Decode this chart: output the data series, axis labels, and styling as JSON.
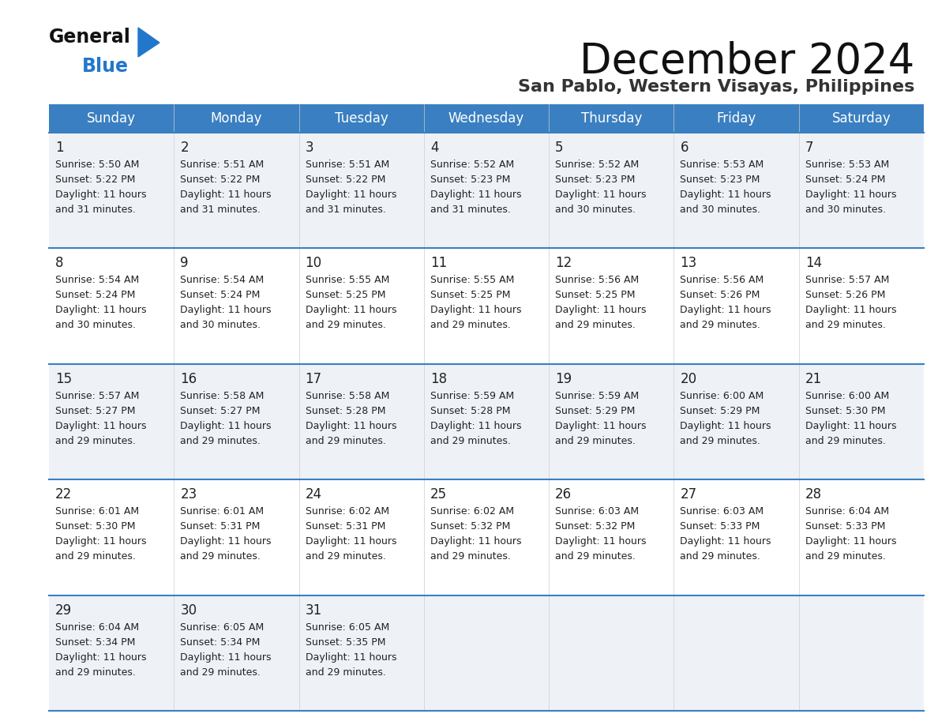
{
  "title": "December 2024",
  "subtitle": "San Pablo, Western Visayas, Philippines",
  "days_of_week": [
    "Sunday",
    "Monday",
    "Tuesday",
    "Wednesday",
    "Thursday",
    "Friday",
    "Saturday"
  ],
  "header_bg_color": "#3a7fc1",
  "header_text_color": "#ffffff",
  "cell_bg_even": "#eef2f7",
  "cell_bg_odd": "#ffffff",
  "row_divider_color": "#3a7fc1",
  "text_color": "#222222",
  "title_color": "#111111",
  "subtitle_color": "#333333",
  "logo_general_color": "#111111",
  "logo_blue_color": "#2277cc",
  "weeks": [
    [
      {
        "day": 1,
        "sunrise": "5:50 AM",
        "sunset": "5:22 PM",
        "daylight_h": "Daylight: 11 hours",
        "daylight_m": "and 31 minutes."
      },
      {
        "day": 2,
        "sunrise": "5:51 AM",
        "sunset": "5:22 PM",
        "daylight_h": "Daylight: 11 hours",
        "daylight_m": "and 31 minutes."
      },
      {
        "day": 3,
        "sunrise": "5:51 AM",
        "sunset": "5:22 PM",
        "daylight_h": "Daylight: 11 hours",
        "daylight_m": "and 31 minutes."
      },
      {
        "day": 4,
        "sunrise": "5:52 AM",
        "sunset": "5:23 PM",
        "daylight_h": "Daylight: 11 hours",
        "daylight_m": "and 31 minutes."
      },
      {
        "day": 5,
        "sunrise": "5:52 AM",
        "sunset": "5:23 PM",
        "daylight_h": "Daylight: 11 hours",
        "daylight_m": "and 30 minutes."
      },
      {
        "day": 6,
        "sunrise": "5:53 AM",
        "sunset": "5:23 PM",
        "daylight_h": "Daylight: 11 hours",
        "daylight_m": "and 30 minutes."
      },
      {
        "day": 7,
        "sunrise": "5:53 AM",
        "sunset": "5:24 PM",
        "daylight_h": "Daylight: 11 hours",
        "daylight_m": "and 30 minutes."
      }
    ],
    [
      {
        "day": 8,
        "sunrise": "5:54 AM",
        "sunset": "5:24 PM",
        "daylight_h": "Daylight: 11 hours",
        "daylight_m": "and 30 minutes."
      },
      {
        "day": 9,
        "sunrise": "5:54 AM",
        "sunset": "5:24 PM",
        "daylight_h": "Daylight: 11 hours",
        "daylight_m": "and 30 minutes."
      },
      {
        "day": 10,
        "sunrise": "5:55 AM",
        "sunset": "5:25 PM",
        "daylight_h": "Daylight: 11 hours",
        "daylight_m": "and 29 minutes."
      },
      {
        "day": 11,
        "sunrise": "5:55 AM",
        "sunset": "5:25 PM",
        "daylight_h": "Daylight: 11 hours",
        "daylight_m": "and 29 minutes."
      },
      {
        "day": 12,
        "sunrise": "5:56 AM",
        "sunset": "5:25 PM",
        "daylight_h": "Daylight: 11 hours",
        "daylight_m": "and 29 minutes."
      },
      {
        "day": 13,
        "sunrise": "5:56 AM",
        "sunset": "5:26 PM",
        "daylight_h": "Daylight: 11 hours",
        "daylight_m": "and 29 minutes."
      },
      {
        "day": 14,
        "sunrise": "5:57 AM",
        "sunset": "5:26 PM",
        "daylight_h": "Daylight: 11 hours",
        "daylight_m": "and 29 minutes."
      }
    ],
    [
      {
        "day": 15,
        "sunrise": "5:57 AM",
        "sunset": "5:27 PM",
        "daylight_h": "Daylight: 11 hours",
        "daylight_m": "and 29 minutes."
      },
      {
        "day": 16,
        "sunrise": "5:58 AM",
        "sunset": "5:27 PM",
        "daylight_h": "Daylight: 11 hours",
        "daylight_m": "and 29 minutes."
      },
      {
        "day": 17,
        "sunrise": "5:58 AM",
        "sunset": "5:28 PM",
        "daylight_h": "Daylight: 11 hours",
        "daylight_m": "and 29 minutes."
      },
      {
        "day": 18,
        "sunrise": "5:59 AM",
        "sunset": "5:28 PM",
        "daylight_h": "Daylight: 11 hours",
        "daylight_m": "and 29 minutes."
      },
      {
        "day": 19,
        "sunrise": "5:59 AM",
        "sunset": "5:29 PM",
        "daylight_h": "Daylight: 11 hours",
        "daylight_m": "and 29 minutes."
      },
      {
        "day": 20,
        "sunrise": "6:00 AM",
        "sunset": "5:29 PM",
        "daylight_h": "Daylight: 11 hours",
        "daylight_m": "and 29 minutes."
      },
      {
        "day": 21,
        "sunrise": "6:00 AM",
        "sunset": "5:30 PM",
        "daylight_h": "Daylight: 11 hours",
        "daylight_m": "and 29 minutes."
      }
    ],
    [
      {
        "day": 22,
        "sunrise": "6:01 AM",
        "sunset": "5:30 PM",
        "daylight_h": "Daylight: 11 hours",
        "daylight_m": "and 29 minutes."
      },
      {
        "day": 23,
        "sunrise": "6:01 AM",
        "sunset": "5:31 PM",
        "daylight_h": "Daylight: 11 hours",
        "daylight_m": "and 29 minutes."
      },
      {
        "day": 24,
        "sunrise": "6:02 AM",
        "sunset": "5:31 PM",
        "daylight_h": "Daylight: 11 hours",
        "daylight_m": "and 29 minutes."
      },
      {
        "day": 25,
        "sunrise": "6:02 AM",
        "sunset": "5:32 PM",
        "daylight_h": "Daylight: 11 hours",
        "daylight_m": "and 29 minutes."
      },
      {
        "day": 26,
        "sunrise": "6:03 AM",
        "sunset": "5:32 PM",
        "daylight_h": "Daylight: 11 hours",
        "daylight_m": "and 29 minutes."
      },
      {
        "day": 27,
        "sunrise": "6:03 AM",
        "sunset": "5:33 PM",
        "daylight_h": "Daylight: 11 hours",
        "daylight_m": "and 29 minutes."
      },
      {
        "day": 28,
        "sunrise": "6:04 AM",
        "sunset": "5:33 PM",
        "daylight_h": "Daylight: 11 hours",
        "daylight_m": "and 29 minutes."
      }
    ],
    [
      {
        "day": 29,
        "sunrise": "6:04 AM",
        "sunset": "5:34 PM",
        "daylight_h": "Daylight: 11 hours",
        "daylight_m": "and 29 minutes."
      },
      {
        "day": 30,
        "sunrise": "6:05 AM",
        "sunset": "5:34 PM",
        "daylight_h": "Daylight: 11 hours",
        "daylight_m": "and 29 minutes."
      },
      {
        "day": 31,
        "sunrise": "6:05 AM",
        "sunset": "5:35 PM",
        "daylight_h": "Daylight: 11 hours",
        "daylight_m": "and 29 minutes."
      },
      null,
      null,
      null,
      null
    ]
  ]
}
